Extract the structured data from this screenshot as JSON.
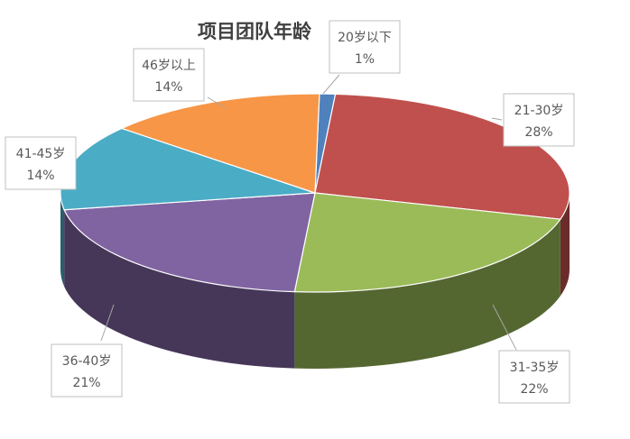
{
  "chart_data": {
    "type": "pie",
    "title": "项目团队年龄",
    "categories": [
      "20岁以下",
      "21-30岁",
      "31-35岁",
      "36-40岁",
      "41-45岁",
      "46岁以上"
    ],
    "values": [
      1,
      28,
      22,
      21,
      14,
      14
    ],
    "value_labels": [
      "1%",
      "28%",
      "22%",
      "21%",
      "14%",
      "14%"
    ],
    "colors": [
      "#4f81bd",
      "#c0504d",
      "#9bbb59",
      "#8064a2",
      "#4bacc6",
      "#f79646"
    ],
    "legend": "none",
    "style": "3d"
  }
}
